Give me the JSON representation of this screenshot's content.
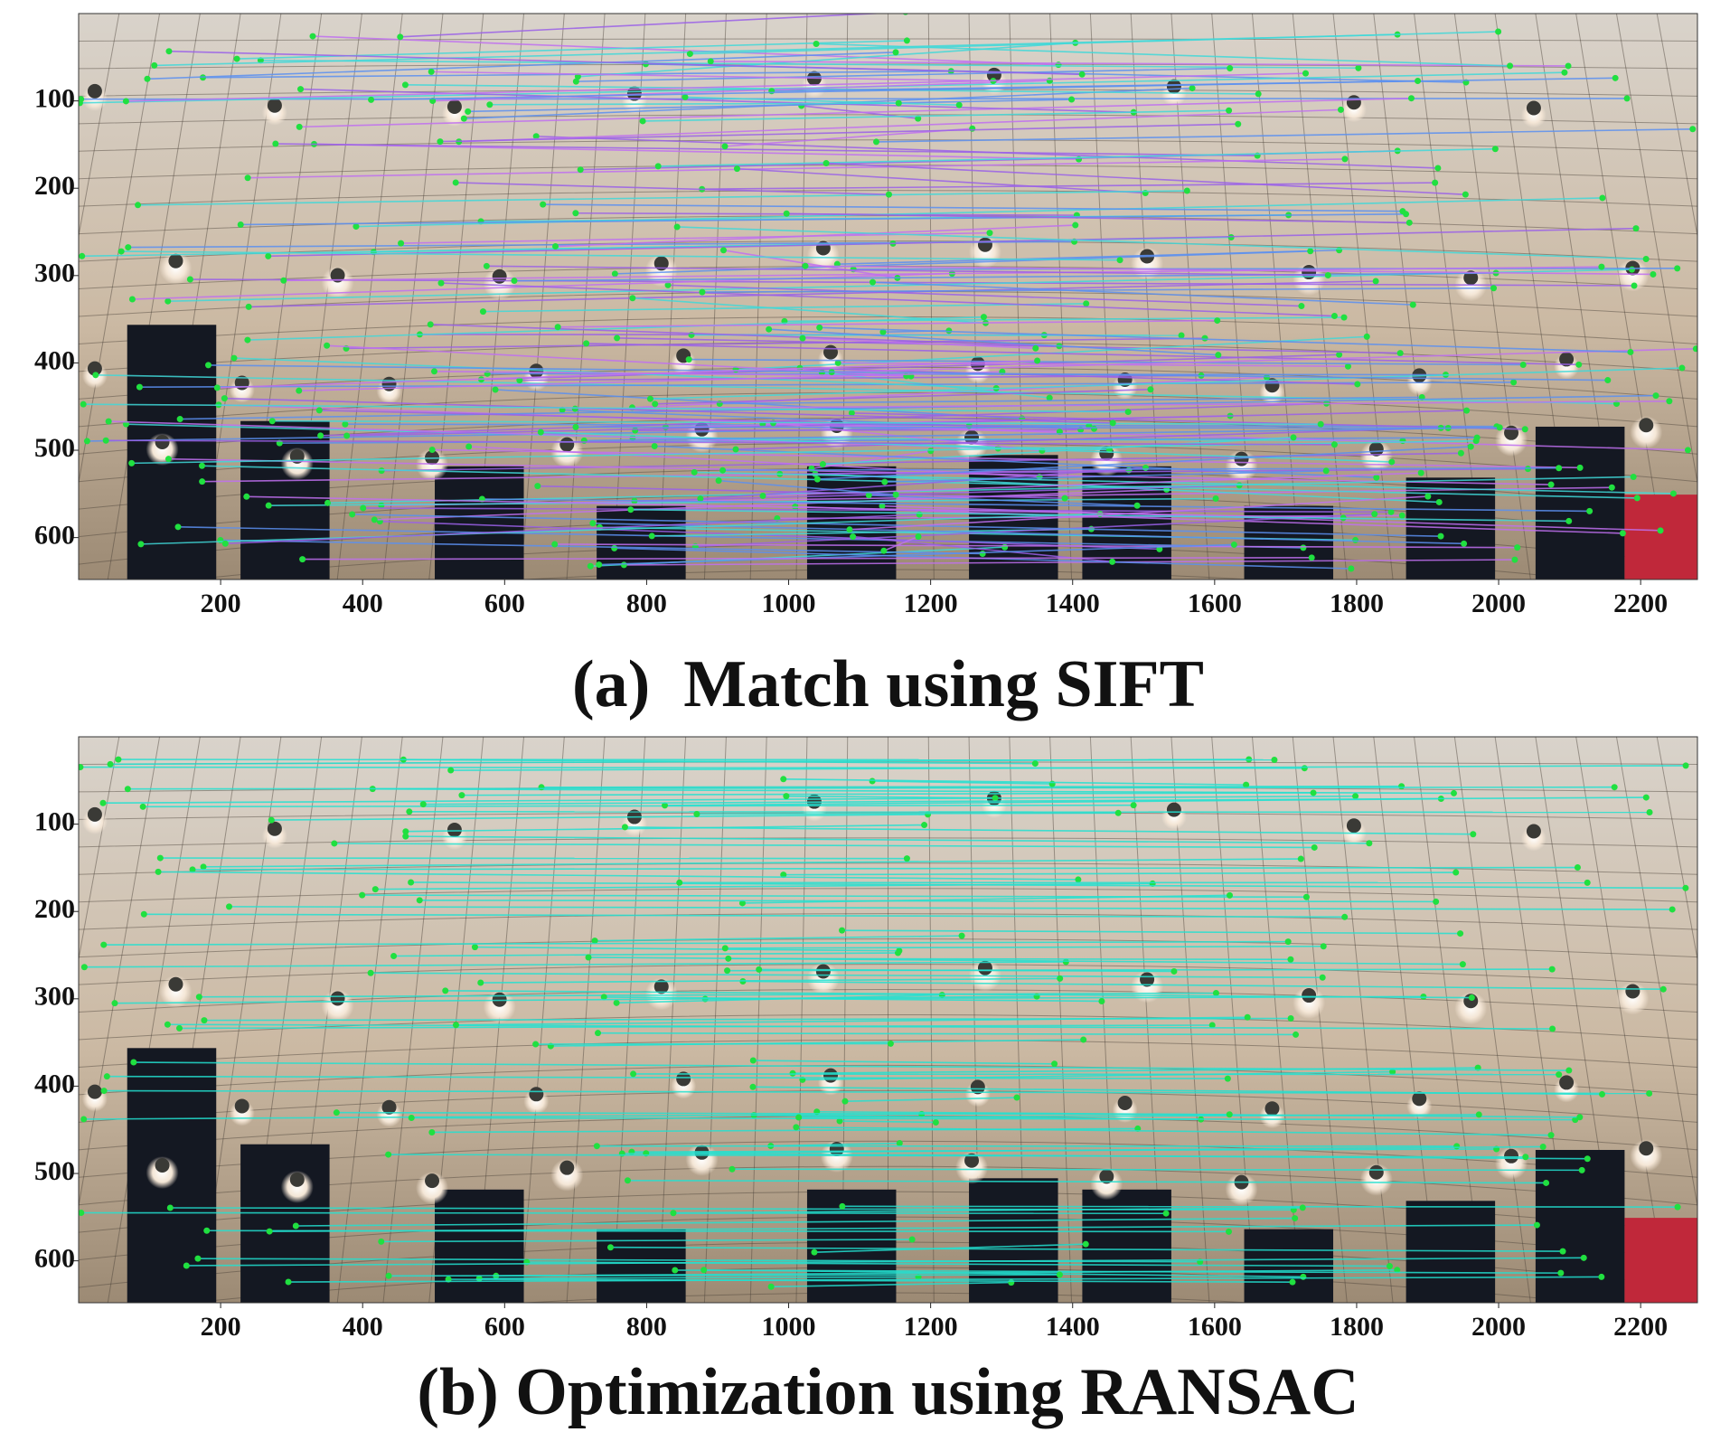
{
  "chart_data": [
    {
      "type": "image",
      "title": "(a)  Match using SIFT",
      "xlim": [
        0,
        2280
      ],
      "ylim": [
        0,
        648
      ],
      "y_inverted": true,
      "xticks": [
        200,
        400,
        600,
        800,
        1000,
        1200,
        1400,
        1600,
        1800,
        2000,
        2200
      ],
      "yticks": [
        100,
        200,
        300,
        400,
        500,
        600
      ],
      "line_colors": [
        "#c070f0",
        "#5a8ff0",
        "#40d8d8",
        "#9a60e8"
      ]
    },
    {
      "type": "image",
      "title": "(b) Optimization using RANSAC",
      "xlim": [
        0,
        2280
      ],
      "ylim": [
        0,
        648
      ],
      "y_inverted": true,
      "xticks": [
        200,
        400,
        600,
        800,
        1000,
        1200,
        1400,
        1600,
        1800,
        2000,
        2200
      ],
      "yticks": [
        100,
        200,
        300,
        400,
        500,
        600
      ],
      "line_colors": [
        "#22e0d0"
      ]
    }
  ]
}
